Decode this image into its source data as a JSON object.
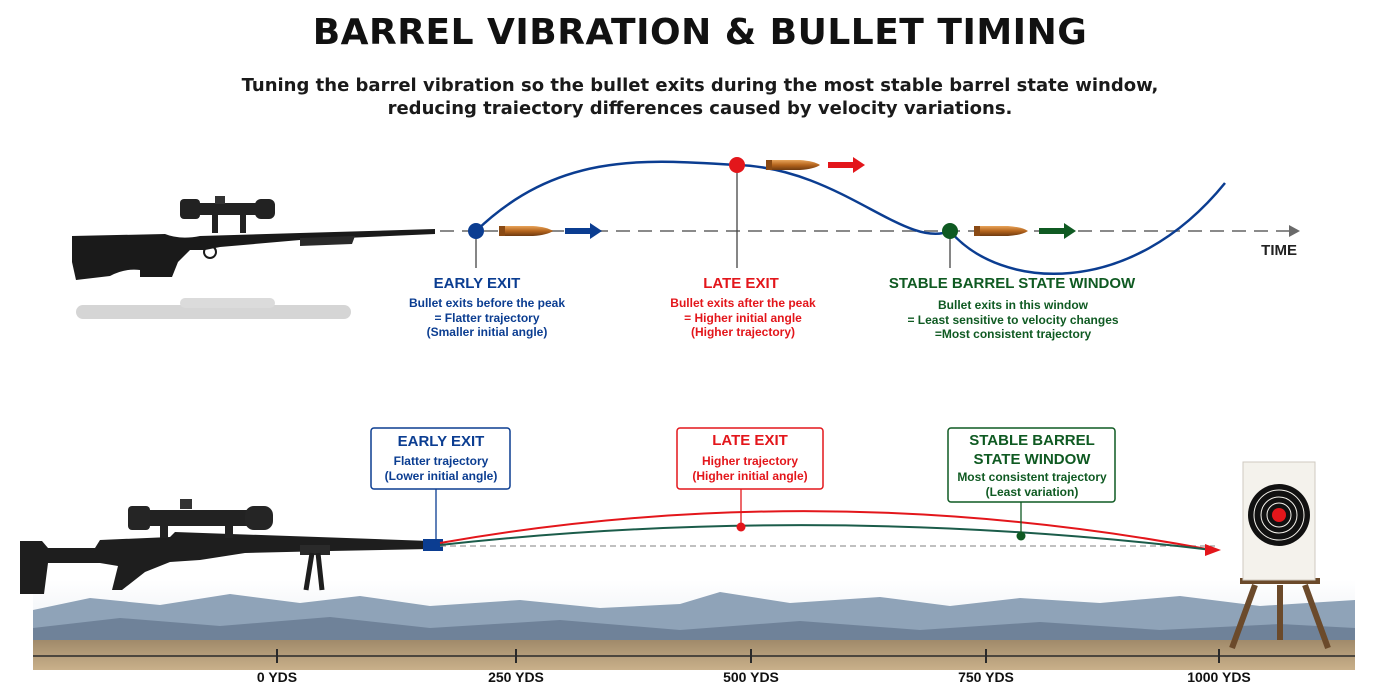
{
  "header": {
    "title": "BARREL VIBRATION & BULLET TIMING",
    "subtitle_lines": [
      "Tuning the barrel vibration so the bullet exits during the most stable barrel state window,",
      "reducing traiectory differences caused by velocity variations."
    ]
  },
  "colors": {
    "early": "#0b3d91",
    "late": "#e3161b",
    "stable": "#0f5a22",
    "wave": "#0b3d91",
    "bullet": "#b5651d"
  },
  "vibration_panel": {
    "axis_label": "TIME",
    "markers": [
      {
        "id": "early",
        "heading": "EARLY EXIT",
        "lines": [
          "Bullet exits before the peak",
          "= Flatter trajectory",
          "(Smaller initial angle)"
        ]
      },
      {
        "id": "late",
        "heading": "LATE EXIT",
        "lines": [
          "Bullet exits after the peak",
          "= Higher initial angle",
          "(Higher trajectory)"
        ]
      },
      {
        "id": "stable",
        "heading": "STABLE BARREL STATE WINDOW",
        "lines": [
          "Bullet exits in this window",
          "= Least sensitive to velocity changes",
          "=Most consistent trajectory"
        ]
      }
    ]
  },
  "trajectory_panel": {
    "callouts": [
      {
        "id": "early",
        "heading_lines": [
          "EARLY EXIT"
        ],
        "lines": [
          "Flatter trajectory",
          "(Lower initial angle)"
        ]
      },
      {
        "id": "late",
        "heading_lines": [
          "LATE EXIT"
        ],
        "lines": [
          "Higher trajectory",
          "(Higher initial angle)"
        ]
      },
      {
        "id": "stable",
        "heading_lines": [
          "STABLE BARREL",
          "STATE WINDOW"
        ],
        "lines": [
          "Most consistent trajectory",
          "(Least variation)"
        ]
      }
    ],
    "distance_labels": [
      "0 YDS",
      "250 YDS",
      "500 YDS",
      "750 YDS",
      "1000 YDS"
    ]
  }
}
